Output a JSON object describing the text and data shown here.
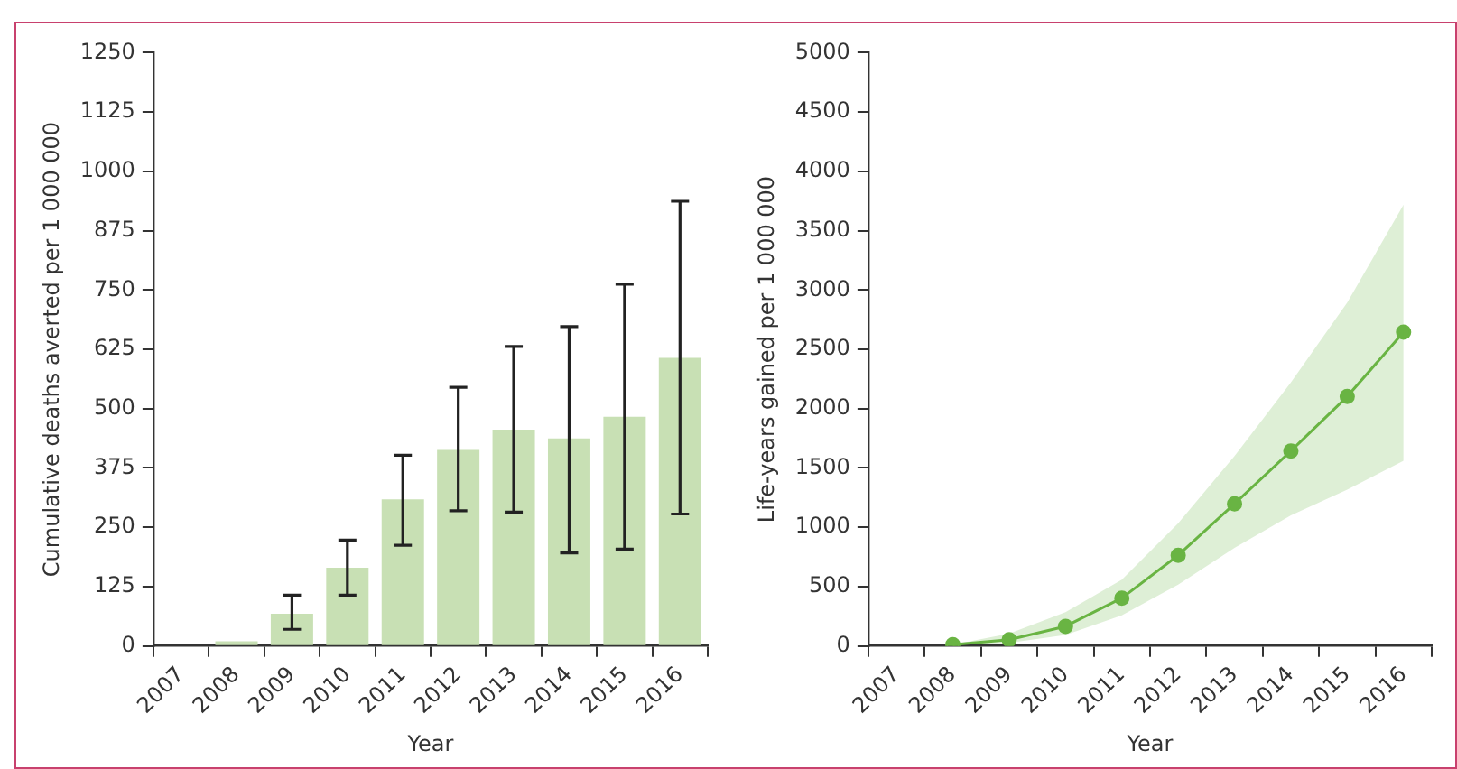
{
  "chart_data": [
    {
      "type": "bar",
      "xlabel": "Year",
      "ylabel": "Cumulative deaths averted per 1 000 000",
      "categories": [
        "2007",
        "2008",
        "2009",
        "2010",
        "2011",
        "2012",
        "2013",
        "2014",
        "2015",
        "2016"
      ],
      "values": [
        0,
        10,
        68,
        165,
        309,
        413,
        456,
        437,
        483,
        607
      ],
      "errors": [
        null,
        null,
        [
          35,
          107
        ],
        [
          107,
          223
        ],
        [
          212,
          402
        ],
        [
          285,
          545
        ],
        [
          282,
          631
        ],
        [
          196,
          673
        ],
        [
          204,
          762
        ],
        [
          278,
          937
        ]
      ],
      "color": "#c8e0b4",
      "ylim": [
        0,
        1250
      ],
      "yticks": [
        0,
        125,
        250,
        375,
        500,
        625,
        750,
        875,
        1000,
        1125,
        1250
      ],
      "grid": false,
      "legend": false
    },
    {
      "type": "line",
      "xlabel": "Year",
      "ylabel": "Life-years gained per 1 000 000",
      "categories": [
        "2007",
        "2008",
        "2009",
        "2010",
        "2011",
        "2012",
        "2013",
        "2014",
        "2015",
        "2016"
      ],
      "series": [
        {
          "color": "#6ab443",
          "values": [
            null,
            10,
            52,
            165,
            403,
            764,
            1198,
            1643,
            2102,
            2645
          ],
          "lower": [
            null,
            10,
            26,
            93,
            258,
            517,
            826,
            1100,
            1317,
            1560
          ],
          "upper": [
            null,
            10,
            103,
            284,
            558,
            1033,
            1601,
            2221,
            2893,
            3719
          ]
        }
      ],
      "marker": "circle",
      "line_style": "solid",
      "ylim": [
        0,
        5000
      ],
      "yticks": [
        0,
        500,
        1000,
        1500,
        2000,
        2500,
        3000,
        3500,
        4000,
        4500,
        5000
      ],
      "grid": false,
      "legend": false
    }
  ]
}
